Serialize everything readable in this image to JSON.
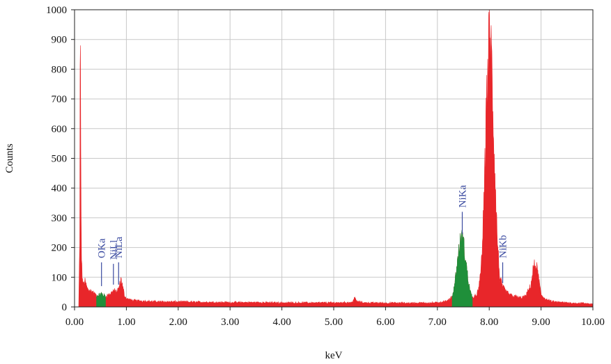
{
  "chart_data": {
    "type": "area",
    "title": "",
    "xlabel": "keV",
    "ylabel": "Counts",
    "xlim": [
      0,
      10
    ],
    "ylim": [
      0,
      1000
    ],
    "grid": true,
    "x_ticks": [
      0,
      1,
      2,
      3,
      4,
      5,
      6,
      7,
      8,
      9,
      10
    ],
    "x_tick_labels": [
      "0.00",
      "1.00",
      "2.00",
      "3.00",
      "4.00",
      "5.00",
      "6.00",
      "7.00",
      "8.00",
      "9.00",
      "10.00"
    ],
    "y_ticks": [
      0,
      100,
      200,
      300,
      400,
      500,
      600,
      700,
      800,
      900,
      1000
    ],
    "y_tick_labels": [
      "0",
      "100",
      "200",
      "300",
      "400",
      "500",
      "600",
      "700",
      "800",
      "900",
      "1000"
    ],
    "colors": {
      "spectrum": "#e8262a",
      "roi": "#1f8f3a",
      "label": "#3a4aa0",
      "grid": "#c8c8c8",
      "axis": "#222222"
    },
    "series": [
      {
        "x": [
          0.08,
          0.1,
          0.11,
          0.12,
          0.13,
          0.14,
          0.16,
          0.2,
          0.25,
          0.3,
          0.35,
          0.4,
          0.45,
          0.5,
          0.52,
          0.55,
          0.6,
          0.65,
          0.7,
          0.75,
          0.8,
          0.85,
          0.88,
          0.9,
          0.93,
          0.97,
          1.0,
          1.1,
          1.3,
          1.5,
          2.0,
          2.5,
          3.0,
          3.5,
          4.0,
          4.5,
          5.0,
          5.35,
          5.4,
          5.45,
          5.6,
          6.0,
          6.5,
          7.0,
          7.2,
          7.3,
          7.35,
          7.4,
          7.45,
          7.48,
          7.5,
          7.55,
          7.6,
          7.65,
          7.7,
          7.75,
          7.8,
          7.85,
          7.9,
          7.95,
          8.0,
          8.03,
          8.06,
          8.1,
          8.15,
          8.2,
          8.25,
          8.3,
          8.4,
          8.5,
          8.6,
          8.7,
          8.8,
          8.85,
          8.9,
          8.95,
          9.0,
          9.1,
          9.2,
          9.4,
          9.6,
          9.8,
          10.0
        ],
        "y": [
          0,
          220,
          1000,
          480,
          200,
          130,
          70,
          85,
          60,
          55,
          50,
          40,
          38,
          42,
          45,
          40,
          35,
          40,
          45,
          55,
          50,
          60,
          80,
          95,
          65,
          35,
          28,
          22,
          20,
          18,
          17,
          16,
          15,
          15,
          14,
          14,
          14,
          15,
          30,
          18,
          14,
          13,
          13,
          14,
          20,
          40,
          100,
          170,
          225,
          230,
          215,
          150,
          80,
          40,
          30,
          40,
          60,
          150,
          350,
          700,
          900,
          880,
          750,
          500,
          250,
          100,
          70,
          55,
          40,
          35,
          30,
          35,
          70,
          130,
          145,
          100,
          40,
          25,
          18,
          15,
          13,
          12,
          10
        ]
      }
    ],
    "highlighted_regions": [
      {
        "name": "O Ka",
        "x_range": [
          0.42,
          0.6
        ]
      },
      {
        "name": "Ni Ka",
        "x_range": [
          7.28,
          7.68
        ]
      }
    ],
    "peak_labels": [
      {
        "text": "OKa",
        "x": 0.52,
        "marker_y": [
          70,
          150
        ]
      },
      {
        "text": "NiLl",
        "x": 0.75,
        "marker_y": [
          75,
          145
        ]
      },
      {
        "text": "NiLa",
        "x": 0.85,
        "marker_y": [
          75,
          150
        ]
      },
      {
        "text": "NiKa",
        "x": 7.48,
        "marker_y": [
          245,
          320
        ]
      },
      {
        "text": "NiKb",
        "x": 8.26,
        "marker_y": [
          80,
          150
        ]
      }
    ]
  }
}
